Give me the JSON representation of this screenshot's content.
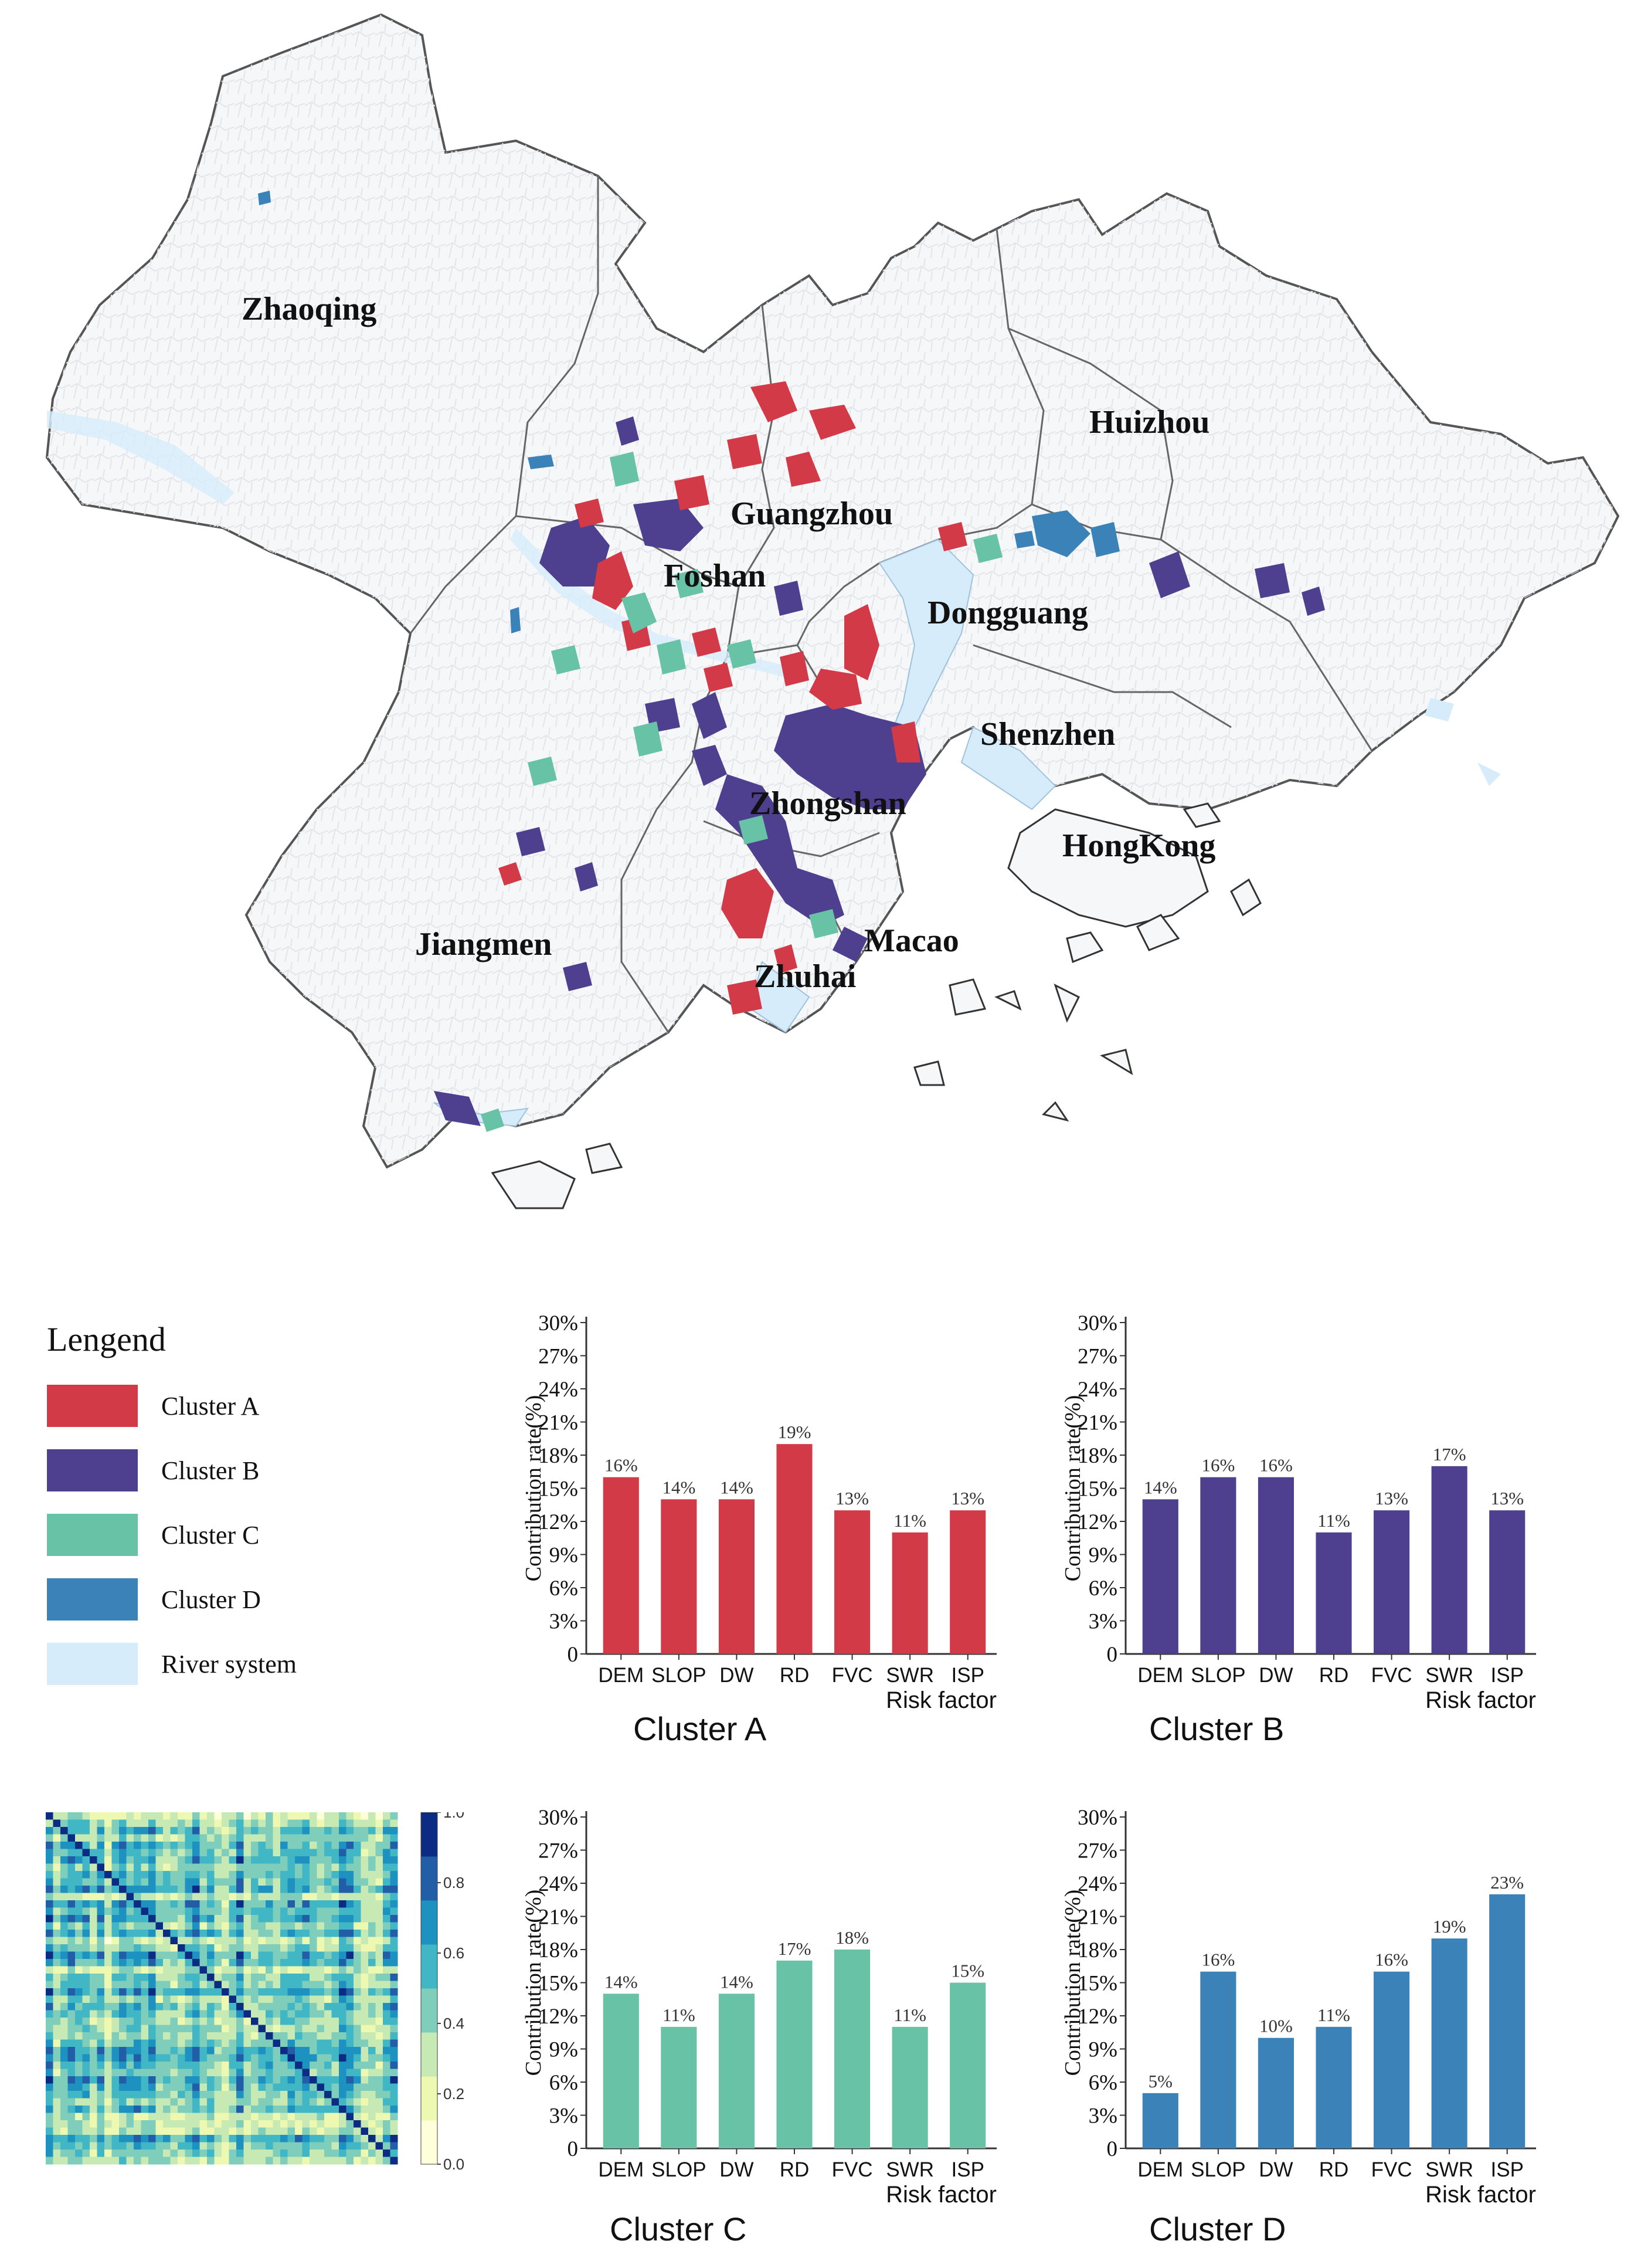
{
  "map": {
    "cities": [
      "Zhaoqing",
      "Huizhou",
      "Guangzhou",
      "Foshan",
      "Dongguang",
      "Shenzhen",
      "Zhongshan",
      "HongKong",
      "Jiangmen",
      "Macao",
      "Zhuhai"
    ]
  },
  "legend": {
    "title": "Lengend",
    "items": [
      {
        "label": "Cluster A",
        "color": "#d23a48"
      },
      {
        "label": "Cluster B",
        "color": "#4f3f8f"
      },
      {
        "label": "Cluster C",
        "color": "#67c2a6"
      },
      {
        "label": "Cluster D",
        "color": "#3a82b8"
      },
      {
        "label": "River system",
        "color": "#d6ecfa"
      }
    ]
  },
  "colors": {
    "river": "#d6ecfa",
    "boundary": "#555555",
    "land": "#f6f7f9"
  },
  "chart_data": [
    {
      "type": "bar",
      "caption": "Cluster A",
      "color": "#d23a48",
      "categories": [
        "DEM",
        "SLOP",
        "DW",
        "RD",
        "FVC",
        "SWR",
        "ISP"
      ],
      "values": [
        16,
        14,
        14,
        19,
        13,
        11,
        13
      ],
      "labels": [
        "16%",
        "14%",
        "14%",
        "19%",
        "13%",
        "11%",
        "13%"
      ],
      "ylabel": "Contribution rate(%)",
      "xlabel": "Risk factor",
      "yticks": [
        "0",
        "3%",
        "6%",
        "9%",
        "12%",
        "15%",
        "18%",
        "21%",
        "24%",
        "27%",
        "30%"
      ],
      "ylim": [
        0,
        30
      ]
    },
    {
      "type": "bar",
      "caption": "Cluster B",
      "color": "#4f3f8f",
      "categories": [
        "DEM",
        "SLOP",
        "DW",
        "RD",
        "FVC",
        "SWR",
        "ISP"
      ],
      "values": [
        14,
        16,
        16,
        11,
        13,
        17,
        13
      ],
      "labels": [
        "14%",
        "16%",
        "16%",
        "11%",
        "13%",
        "17%",
        "13%"
      ],
      "ylabel": "Contribution rate(%)",
      "xlabel": "Risk factor",
      "yticks": [
        "0",
        "3%",
        "6%",
        "9%",
        "12%",
        "15%",
        "18%",
        "21%",
        "24%",
        "27%",
        "30%"
      ],
      "ylim": [
        0,
        30
      ]
    },
    {
      "type": "bar",
      "caption": "Cluster C",
      "color": "#67c2a6",
      "categories": [
        "DEM",
        "SLOP",
        "DW",
        "RD",
        "FVC",
        "SWR",
        "ISP"
      ],
      "values": [
        14,
        11,
        14,
        17,
        18,
        11,
        15
      ],
      "labels": [
        "14%",
        "11%",
        "14%",
        "17%",
        "18%",
        "11%",
        "15%"
      ],
      "ylabel": "Contribution rate(%)",
      "xlabel": "Risk factor",
      "yticks": [
        "0",
        "3%",
        "6%",
        "9%",
        "12%",
        "15%",
        "18%",
        "21%",
        "24%",
        "27%",
        "30%"
      ],
      "ylim": [
        0,
        30
      ]
    },
    {
      "type": "bar",
      "caption": "Cluster D",
      "color": "#3a82b8",
      "categories": [
        "DEM",
        "SLOP",
        "DW",
        "RD",
        "FVC",
        "SWR",
        "ISP"
      ],
      "values": [
        5,
        16,
        10,
        11,
        16,
        19,
        23
      ],
      "labels": [
        "5%",
        "16%",
        "10%",
        "11%",
        "16%",
        "19%",
        "23%"
      ],
      "ylabel": "Contribution rate(%)",
      "xlabel": "Risk factor",
      "yticks": [
        "0",
        "3%",
        "6%",
        "9%",
        "12%",
        "15%",
        "18%",
        "21%",
        "24%",
        "27%",
        "30%"
      ],
      "ylim": [
        0,
        30
      ]
    },
    {
      "type": "heatmap",
      "colorbar_ticks": [
        "0.0",
        "0.2",
        "0.4",
        "0.6",
        "0.8",
        "1.0"
      ],
      "range": [
        0,
        1
      ],
      "colormap": "YlGnBu"
    }
  ]
}
